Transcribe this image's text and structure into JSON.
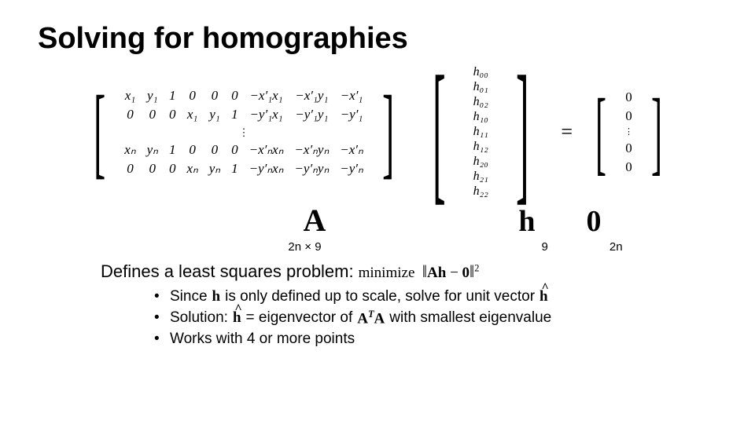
{
  "colors": {
    "background": "#ffffff",
    "text": "#000000"
  },
  "fonts": {
    "sans": "Arial",
    "serif": "Times New Roman"
  },
  "title": "Solving for homographies",
  "matrix_A": {
    "size_label": "2n × 9",
    "rows": [
      [
        "x₁",
        "y₁",
        "1",
        "0",
        "0",
        "0",
        "−x′₁x₁",
        "−x′₁y₁",
        "−x′₁"
      ],
      [
        "0",
        "0",
        "0",
        "x₁",
        "y₁",
        "1",
        "−y′₁x₁",
        "−y′₁y₁",
        "−y′₁"
      ],
      "vdots",
      [
        "xₙ",
        "yₙ",
        "1",
        "0",
        "0",
        "0",
        "−x′ₙxₙ",
        "−x′ₙyₙ",
        "−x′ₙ"
      ],
      [
        "0",
        "0",
        "0",
        "xₙ",
        "yₙ",
        "1",
        "−y′ₙxₙ",
        "−y′ₙyₙ",
        "−y′ₙ"
      ]
    ]
  },
  "vector_h": {
    "size_label": "9",
    "entries": [
      "h₀₀",
      "h₀₁",
      "h₀₂",
      "h₁₀",
      "h₁₁",
      "h₁₂",
      "h₂₀",
      "h₂₁",
      "h₂₂"
    ]
  },
  "vector_0": {
    "size_label": "2n",
    "entries": [
      "0",
      "0",
      "vdots",
      "0",
      "0"
    ]
  },
  "symbols": {
    "A": "A",
    "h": "h",
    "zero": "0",
    "equals": "="
  },
  "least_squares": {
    "prefix": "Defines a least squares problem:",
    "minimize_word": "minimize",
    "expr_Ah": "Ah",
    "expr_minus": " − ",
    "expr_zero": "0"
  },
  "bullets": {
    "b1_a": "Since ",
    "b1_h": "h",
    "b1_b": " is only defined up to scale, solve for unit vector ",
    "b1_hhat": "h",
    "b2_a": "Solution: ",
    "b2_hhat": "h",
    "b2_b": " = eigenvector of ",
    "b2_ATA_A1": "A",
    "b2_ATA_T": "T",
    "b2_ATA_A2": "A",
    "b2_c": " with smallest eigenvalue",
    "b3": "Works with 4 or more points"
  }
}
